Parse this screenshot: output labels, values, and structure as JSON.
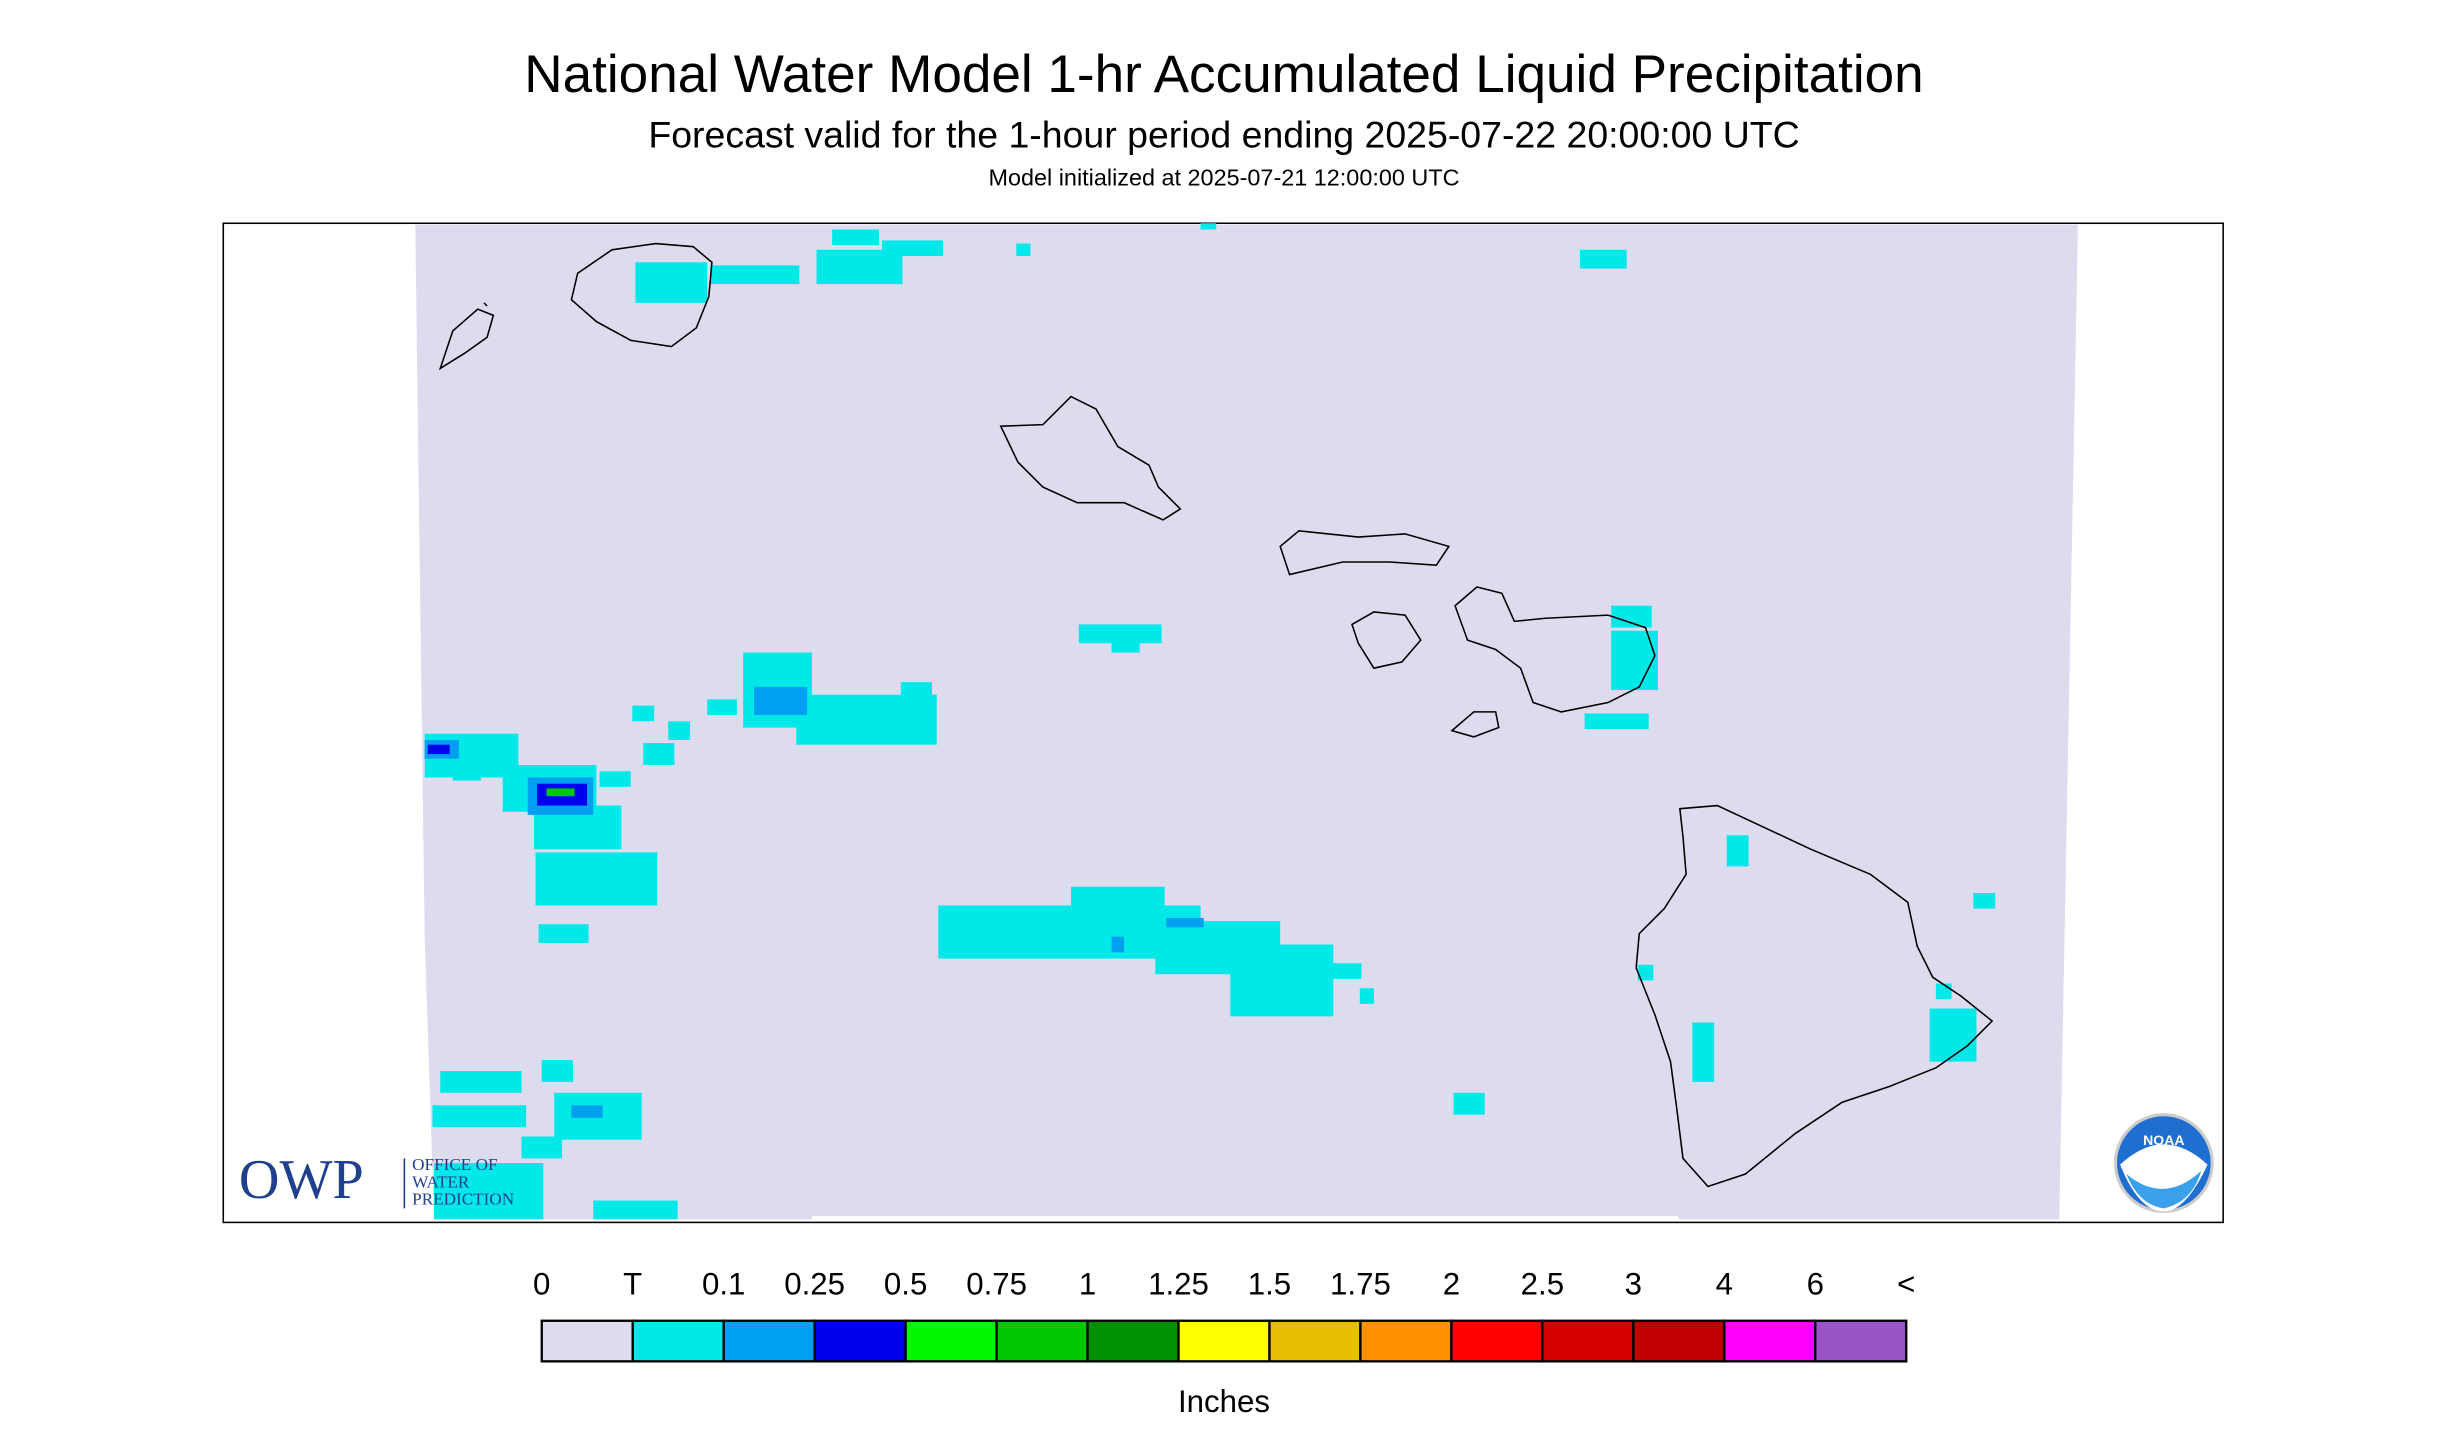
{
  "header": {
    "title": "National Water Model 1-hr Accumulated Liquid Precipitation",
    "subtitle": "Forecast valid for the 1-hour period ending 2025-07-22 20:00:00 UTC",
    "initialized": "Model initialized at 2025-07-21 12:00:00 UTC"
  },
  "legend": {
    "labels": [
      "0",
      "T",
      "0.1",
      "0.25",
      "0.5",
      "0.75",
      "1",
      "1.25",
      "1.5",
      "1.75",
      "2",
      "2.5",
      "3",
      "4",
      "6",
      "<"
    ],
    "colors": [
      "#dcdcee",
      "#00e8e8",
      "#00a0f0",
      "#0000f0",
      "#00f800",
      "#00c800",
      "#009000",
      "#ffff00",
      "#e6c000",
      "#ff9000",
      "#ff0000",
      "#d60000",
      "#c00000",
      "#ff00ff",
      "#9955c8"
    ],
    "unit": "Inches"
  },
  "logos": {
    "owp": "OWP",
    "owp_lines": [
      "OFFICE OF",
      "WATER",
      "PREDICTION"
    ],
    "noaa": "NOAA"
  }
}
